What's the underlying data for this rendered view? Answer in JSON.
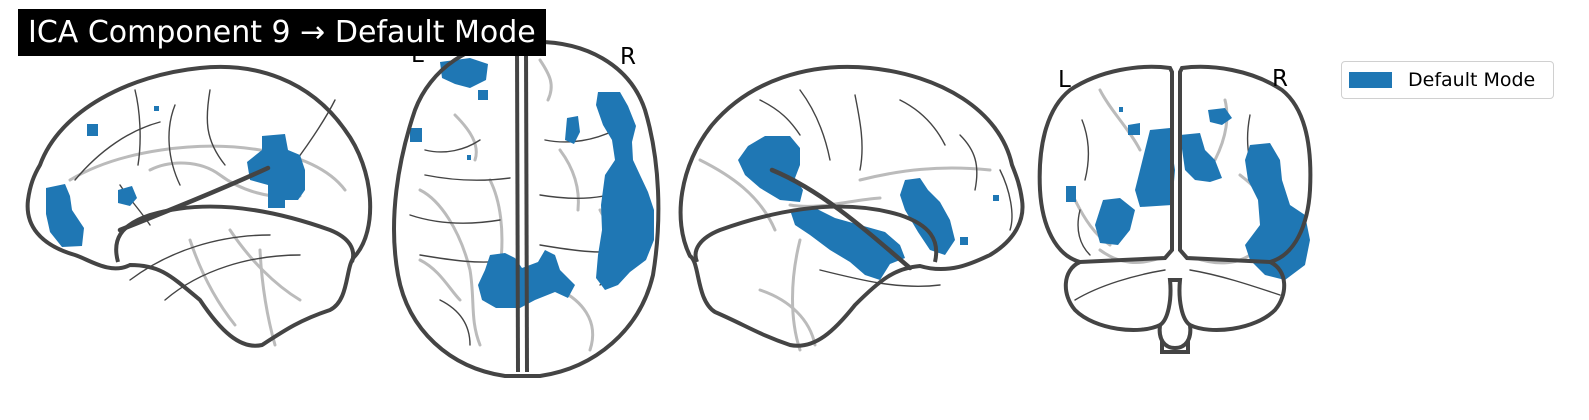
{
  "figure": {
    "title": "ICA Component 9 → Default Mode",
    "component_color": "#1f77b4",
    "outline_color": "#444444",
    "inner_contour_color": "#bbbbbb",
    "sulcus_color": "#444444"
  },
  "views": {
    "sagittal_left": {},
    "axial": {
      "left_label": "L",
      "right_label": "R"
    },
    "sagittal_right": {},
    "coronal": {
      "left_label": "L",
      "right_label": "R"
    }
  },
  "legend": {
    "label": "Default Mode",
    "color": "#1f77b4"
  }
}
